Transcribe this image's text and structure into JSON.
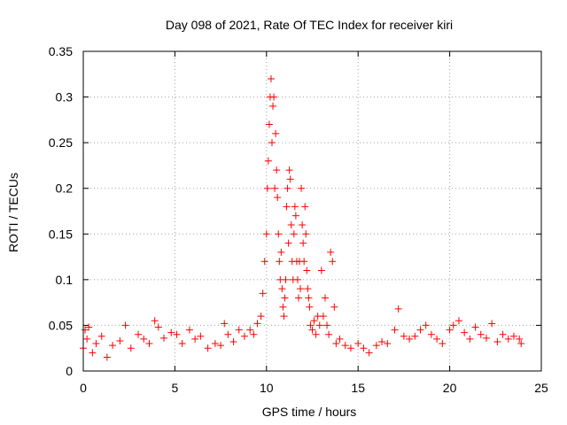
{
  "chart_data": {
    "type": "scatter",
    "title": "Day 098 of 2021, Rate Of TEC Index for receiver kiri",
    "xlabel": "GPS time / hours",
    "ylabel": "ROTI / TECUs",
    "xlim": [
      0,
      25
    ],
    "ylim": [
      0,
      0.35
    ],
    "xticks": [
      0,
      5,
      10,
      15,
      20,
      25
    ],
    "xtick_labels": [
      "0",
      "5",
      "10",
      "15",
      "20",
      "25"
    ],
    "yticks": [
      0,
      0.05,
      0.1,
      0.15,
      0.2,
      0.25,
      0.3,
      0.35
    ],
    "ytick_labels": [
      "0",
      "0.05",
      "0.1",
      "0.15",
      "0.2",
      "0.25",
      "0.3",
      "0.35"
    ],
    "grid": true,
    "marker": "plus",
    "color": "#ff0000",
    "series": [
      {
        "name": "ROTI",
        "points": [
          [
            0.0,
            0.025
          ],
          [
            0.1,
            0.045
          ],
          [
            0.2,
            0.035
          ],
          [
            0.3,
            0.048
          ],
          [
            0.5,
            0.02
          ],
          [
            0.7,
            0.03
          ],
          [
            1.0,
            0.038
          ],
          [
            1.3,
            0.015
          ],
          [
            1.6,
            0.028
          ],
          [
            2.0,
            0.033
          ],
          [
            2.3,
            0.05
          ],
          [
            2.6,
            0.025
          ],
          [
            3.0,
            0.04
          ],
          [
            3.3,
            0.035
          ],
          [
            3.6,
            0.03
          ],
          [
            3.9,
            0.055
          ],
          [
            4.1,
            0.048
          ],
          [
            4.4,
            0.036
          ],
          [
            4.8,
            0.042
          ],
          [
            5.1,
            0.04
          ],
          [
            5.4,
            0.03
          ],
          [
            5.8,
            0.045
          ],
          [
            6.1,
            0.035
          ],
          [
            6.4,
            0.038
          ],
          [
            6.8,
            0.025
          ],
          [
            7.2,
            0.03
          ],
          [
            7.5,
            0.028
          ],
          [
            7.7,
            0.052
          ],
          [
            7.9,
            0.04
          ],
          [
            8.2,
            0.032
          ],
          [
            8.5,
            0.045
          ],
          [
            8.8,
            0.038
          ],
          [
            9.1,
            0.045
          ],
          [
            9.3,
            0.04
          ],
          [
            9.5,
            0.052
          ],
          [
            9.7,
            0.06
          ],
          [
            9.8,
            0.085
          ],
          [
            9.9,
            0.12
          ],
          [
            10.0,
            0.15
          ],
          [
            10.05,
            0.2
          ],
          [
            10.1,
            0.23
          ],
          [
            10.15,
            0.27
          ],
          [
            10.2,
            0.3
          ],
          [
            10.25,
            0.32
          ],
          [
            10.3,
            0.25
          ],
          [
            10.35,
            0.29
          ],
          [
            10.4,
            0.3
          ],
          [
            10.45,
            0.2
          ],
          [
            10.5,
            0.26
          ],
          [
            10.55,
            0.22
          ],
          [
            10.6,
            0.19
          ],
          [
            10.65,
            0.15
          ],
          [
            10.7,
            0.12
          ],
          [
            10.75,
            0.1
          ],
          [
            10.8,
            0.13
          ],
          [
            10.85,
            0.09
          ],
          [
            10.9,
            0.07
          ],
          [
            10.95,
            0.06
          ],
          [
            11.0,
            0.08
          ],
          [
            11.05,
            0.1
          ],
          [
            11.1,
            0.18
          ],
          [
            11.15,
            0.2
          ],
          [
            11.2,
            0.14
          ],
          [
            11.25,
            0.22
          ],
          [
            11.3,
            0.21
          ],
          [
            11.35,
            0.16
          ],
          [
            11.4,
            0.12
          ],
          [
            11.45,
            0.1
          ],
          [
            11.5,
            0.15
          ],
          [
            11.55,
            0.18
          ],
          [
            11.6,
            0.17
          ],
          [
            11.65,
            0.12
          ],
          [
            11.7,
            0.1
          ],
          [
            11.75,
            0.08
          ],
          [
            11.8,
            0.12
          ],
          [
            11.85,
            0.09
          ],
          [
            11.9,
            0.2
          ],
          [
            11.95,
            0.16
          ],
          [
            12.0,
            0.14
          ],
          [
            12.05,
            0.12
          ],
          [
            12.1,
            0.18
          ],
          [
            12.15,
            0.15
          ],
          [
            12.2,
            0.11
          ],
          [
            12.25,
            0.09
          ],
          [
            12.3,
            0.08
          ],
          [
            12.35,
            0.07
          ],
          [
            12.4,
            0.05
          ],
          [
            12.5,
            0.045
          ],
          [
            12.6,
            0.055
          ],
          [
            12.7,
            0.04
          ],
          [
            12.8,
            0.06
          ],
          [
            12.9,
            0.05
          ],
          [
            13.0,
            0.11
          ],
          [
            13.1,
            0.06
          ],
          [
            13.2,
            0.08
          ],
          [
            13.3,
            0.05
          ],
          [
            13.4,
            0.04
          ],
          [
            13.5,
            0.13
          ],
          [
            13.6,
            0.12
          ],
          [
            13.7,
            0.07
          ],
          [
            13.8,
            0.03
          ],
          [
            14.0,
            0.035
          ],
          [
            14.3,
            0.028
          ],
          [
            14.6,
            0.025
          ],
          [
            15.0,
            0.03
          ],
          [
            15.3,
            0.025
          ],
          [
            15.6,
            0.02
          ],
          [
            16.0,
            0.028
          ],
          [
            16.3,
            0.032
          ],
          [
            16.6,
            0.03
          ],
          [
            17.0,
            0.045
          ],
          [
            17.2,
            0.068
          ],
          [
            17.5,
            0.038
          ],
          [
            17.8,
            0.035
          ],
          [
            18.1,
            0.038
          ],
          [
            18.4,
            0.045
          ],
          [
            18.7,
            0.05
          ],
          [
            19.0,
            0.04
          ],
          [
            19.3,
            0.035
          ],
          [
            19.6,
            0.03
          ],
          [
            20.0,
            0.045
          ],
          [
            20.2,
            0.05
          ],
          [
            20.5,
            0.055
          ],
          [
            20.8,
            0.042
          ],
          [
            21.1,
            0.035
          ],
          [
            21.4,
            0.048
          ],
          [
            21.7,
            0.04
          ],
          [
            22.0,
            0.036
          ],
          [
            22.3,
            0.052
          ],
          [
            22.6,
            0.032
          ],
          [
            22.9,
            0.04
          ],
          [
            23.2,
            0.035
          ],
          [
            23.5,
            0.038
          ],
          [
            23.8,
            0.035
          ],
          [
            23.9,
            0.03
          ]
        ]
      }
    ]
  }
}
